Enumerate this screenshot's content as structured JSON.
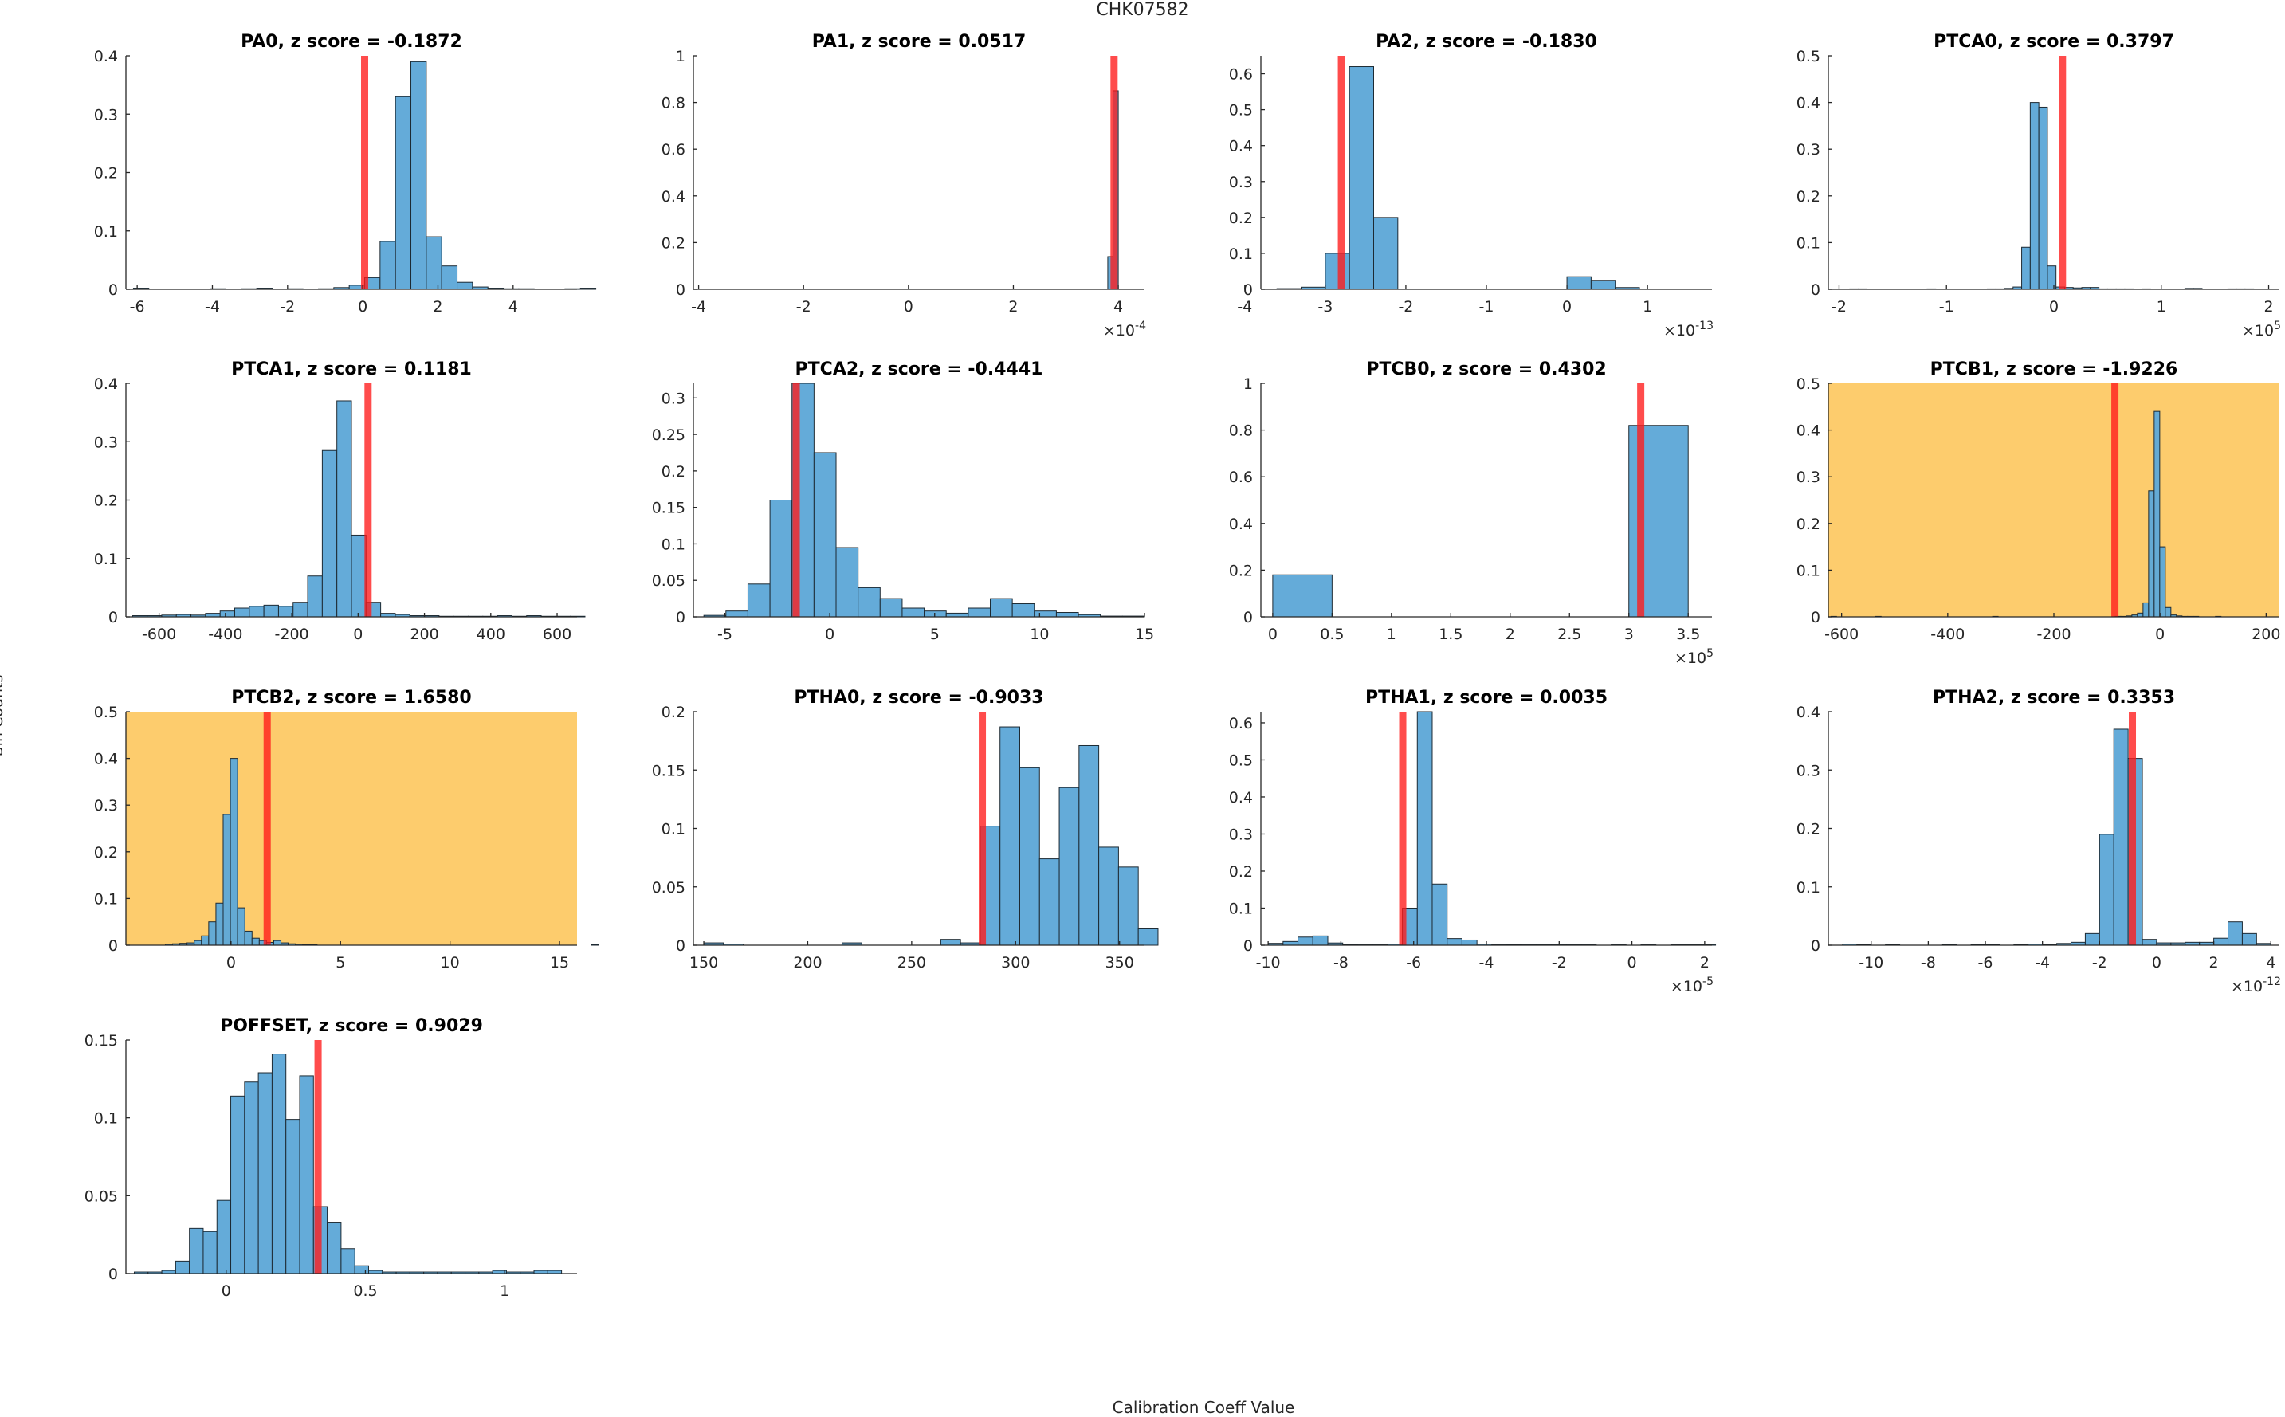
{
  "figure": {
    "title": "CHK07582",
    "xlabel": "Calibration Coeff Value",
    "ylabel": "Bin Counts",
    "highlight_color": "#fdcc6d",
    "bar_color": "#5fa8d8",
    "line_color": "#ff1a1a"
  },
  "chart_data": [
    {
      "type": "bar",
      "title": "PA0, z score = -0.1872",
      "highlight": false,
      "xlim": [
        -6.3,
        5.7
      ],
      "ylim": [
        0,
        0.4
      ],
      "xticks": [
        -6,
        -4,
        -2,
        0,
        2,
        4
      ],
      "xticklabels": [
        "-6",
        "-4",
        "-2",
        "0",
        "2",
        "4"
      ],
      "yticks": [
        0,
        0.1,
        0.2,
        0.3,
        0.4
      ],
      "yticklabels": [
        "0",
        "0.1",
        "0.2",
        "0.3",
        "0.4"
      ],
      "exponent": "",
      "bin_start": -6.1,
      "bin_width": 0.41,
      "values": [
        0.002,
        0,
        0,
        0,
        0,
        0.001,
        0,
        0.001,
        0.002,
        0,
        0.001,
        0,
        0.001,
        0.003,
        0.007,
        0.02,
        0.082,
        0.33,
        0.39,
        0.09,
        0.04,
        0.012,
        0.004,
        0.002,
        0.001,
        0.001,
        0,
        0,
        0.001,
        0.002,
        0,
        0
      ],
      "marker": 0.05
    },
    {
      "type": "bar",
      "title": "PA1, z score = 0.0517",
      "highlight": false,
      "xlim": [
        -4.1,
        4.5
      ],
      "ylim": [
        0,
        1
      ],
      "xticks": [
        -4,
        -2,
        0,
        2,
        4
      ],
      "xticklabels": [
        "-4",
        "-2",
        "0",
        "2",
        "4"
      ],
      "yticks": [
        0,
        0.2,
        0.4,
        0.6,
        0.8,
        1
      ],
      "yticklabels": [
        "0",
        "0.2",
        "0.4",
        "0.6",
        "0.8",
        "1"
      ],
      "exponent": "-4",
      "bin_start": -4.0,
      "bin_width": 0.1,
      "values": [
        0.001,
        0,
        0,
        0,
        0,
        0,
        0,
        0,
        0,
        0,
        0,
        0,
        0,
        0,
        0,
        0,
        0,
        0,
        0,
        0,
        0,
        0,
        0,
        0,
        0,
        0,
        0,
        0,
        0,
        0,
        0,
        0,
        0,
        0,
        0,
        0,
        0,
        0,
        0,
        0,
        0,
        0,
        0,
        0,
        0,
        0,
        0,
        0,
        0,
        0,
        0,
        0,
        0,
        0,
        0,
        0,
        0,
        0,
        0,
        0,
        0,
        0,
        0,
        0,
        0,
        0,
        0,
        0,
        0,
        0,
        0,
        0,
        0,
        0,
        0,
        0,
        0,
        0,
        0.14,
        0.85
      ],
      "marker": 3.92
    },
    {
      "type": "bar",
      "title": "PA2, z score = -0.1830",
      "highlight": false,
      "xlim": [
        -3.8,
        1.8
      ],
      "ylim": [
        0,
        0.65
      ],
      "xticks": [
        -4,
        -3,
        -2,
        -1,
        0,
        1
      ],
      "xticklabels": [
        "-4",
        "-3",
        "-2",
        "-1",
        "0",
        "1"
      ],
      "yticks": [
        0,
        0.1,
        0.2,
        0.3,
        0.4,
        0.5,
        0.6
      ],
      "yticklabels": [
        "0",
        "0.1",
        "0.2",
        "0.3",
        "0.4",
        "0.5",
        "0.6"
      ],
      "exponent": "-13",
      "bin_start": -3.6,
      "bin_width": 0.3,
      "values": [
        0.002,
        0.006,
        0.1,
        0.62,
        0.2,
        0,
        0,
        0,
        0,
        0,
        0,
        0,
        0.035,
        0.025,
        0.005
      ],
      "marker": -2.8
    },
    {
      "type": "bar",
      "title": "PTCA0, z score = 0.3797",
      "highlight": false,
      "xlim": [
        -2.1,
        2.1
      ],
      "ylim": [
        0,
        0.5
      ],
      "xticks": [
        -2,
        -1,
        0,
        1,
        2
      ],
      "xticklabels": [
        "-2",
        "-1",
        "0",
        "1",
        "2"
      ],
      "yticks": [
        0,
        0.1,
        0.2,
        0.3,
        0.4,
        0.5
      ],
      "yticklabels": [
        "0",
        "0.1",
        "0.2",
        "0.3",
        "0.4",
        "0.5"
      ],
      "exponent": "5",
      "bin_start": -1.9,
      "bin_width": 0.08,
      "values": [
        0.001,
        0.001,
        0,
        0,
        0,
        0,
        0,
        0,
        0,
        0.001,
        0,
        0,
        0,
        0,
        0,
        0,
        0.001,
        0.001,
        0.002,
        0.005,
        0.09,
        0.4,
        0.39,
        0.05,
        0.005,
        0.004,
        0.003,
        0.004,
        0.004,
        0.001,
        0.001,
        0.001,
        0.001,
        0,
        0.001,
        0,
        0,
        0,
        0,
        0.002,
        0.002,
        0,
        0,
        0,
        0.001,
        0.001,
        0.001
      ],
      "marker": 0.08
    },
    {
      "type": "bar",
      "title": "PTCA1, z score = 0.1181",
      "highlight": false,
      "xlim": [
        -700,
        660
      ],
      "ylim": [
        0,
        0.4
      ],
      "xticks": [
        -600,
        -400,
        -200,
        0,
        200,
        400,
        600
      ],
      "xticklabels": [
        "-600",
        "-400",
        "-200",
        "0",
        "200",
        "400",
        "600"
      ],
      "yticks": [
        0,
        0.1,
        0.2,
        0.3,
        0.4
      ],
      "yticklabels": [
        "0",
        "0.1",
        "0.2",
        "0.3",
        "0.4"
      ],
      "exponent": "",
      "bin_start": -680,
      "bin_width": 44,
      "values": [
        0.002,
        0.002,
        0.003,
        0.004,
        0.003,
        0.006,
        0.01,
        0.015,
        0.018,
        0.02,
        0.018,
        0.025,
        0.07,
        0.285,
        0.37,
        0.14,
        0.025,
        0.006,
        0.004,
        0.002,
        0.002,
        0.001,
        0.001,
        0.001,
        0.001,
        0.002,
        0.001,
        0.002,
        0.001,
        0.001,
        0.001
      ],
      "marker": 30
    },
    {
      "type": "bar",
      "title": "PTCA2, z score = -0.4441",
      "highlight": false,
      "xlim": [
        -6.5,
        15
      ],
      "ylim": [
        0,
        0.32
      ],
      "xticks": [
        -5,
        0,
        5,
        10,
        15
      ],
      "xticklabels": [
        "-5",
        "0",
        "5",
        "10",
        "15"
      ],
      "yticks": [
        0,
        0.05,
        0.1,
        0.15,
        0.2,
        0.25,
        0.3
      ],
      "yticklabels": [
        "0",
        "0.05",
        "0.1",
        "0.15",
        "0.2",
        "0.25",
        "0.3"
      ],
      "exponent": "",
      "bin_start": -6,
      "bin_width": 1.05,
      "values": [
        0.002,
        0.008,
        0.045,
        0.16,
        0.32,
        0.225,
        0.095,
        0.04,
        0.025,
        0.012,
        0.008,
        0.005,
        0.012,
        0.025,
        0.018,
        0.008,
        0.006,
        0.003,
        0.001,
        0.001
      ],
      "marker": -1.6
    },
    {
      "type": "bar",
      "title": "PTCB0, z score = 0.4302",
      "highlight": false,
      "xlim": [
        -0.1,
        3.7
      ],
      "ylim": [
        0,
        1
      ],
      "xticks": [
        0,
        0.5,
        1,
        1.5,
        2,
        2.5,
        3,
        3.5
      ],
      "xticklabels": [
        "0",
        "0.5",
        "1",
        "1.5",
        "2",
        "2.5",
        "3",
        "3.5"
      ],
      "yticks": [
        0,
        0.2,
        0.4,
        0.6,
        0.8,
        1
      ],
      "yticklabels": [
        "0",
        "0.2",
        "0.4",
        "0.6",
        "0.8",
        "1"
      ],
      "exponent": "5",
      "bin_start": 0,
      "bin_width": 0.5,
      "values": [
        0.18,
        0,
        0,
        0,
        0,
        0,
        0.82
      ],
      "marker": 3.1
    },
    {
      "type": "bar",
      "title": "PTCB1, z score = -1.9226",
      "highlight": true,
      "xlim": [
        -625,
        225
      ],
      "ylim": [
        0,
        0.5
      ],
      "xticks": [
        -600,
        -400,
        -200,
        0,
        200
      ],
      "xticklabels": [
        "-600",
        "-400",
        "-200",
        "0",
        "200"
      ],
      "yticks": [
        0,
        0.1,
        0.2,
        0.3,
        0.4,
        0.5
      ],
      "yticklabels": [
        "0",
        "0.1",
        "0.2",
        "0.3",
        "0.4",
        "0.5"
      ],
      "exponent": "",
      "bin_start": -620,
      "bin_width": 10.5,
      "values": [
        0.001,
        0,
        0,
        0,
        0,
        0,
        0,
        0,
        0.001,
        0,
        0,
        0,
        0,
        0,
        0,
        0,
        0,
        0,
        0,
        0,
        0,
        0,
        0,
        0,
        0,
        0,
        0,
        0,
        0,
        0.001,
        0,
        0,
        0,
        0,
        0,
        0,
        0,
        0,
        0,
        0,
        0,
        0,
        0,
        0,
        0,
        0,
        0,
        0,
        0,
        0,
        0,
        0.001,
        0.001,
        0.002,
        0.004,
        0.008,
        0.03,
        0.27,
        0.44,
        0.15,
        0.02,
        0.004,
        0.002,
        0.001,
        0.001,
        0.001,
        0,
        0,
        0,
        0.001
      ],
      "marker": -85
    },
    {
      "type": "bar",
      "title": "PTCB2, z score = 1.6580",
      "highlight": true,
      "xlim": [
        -4.8,
        15.8
      ],
      "ylim": [
        0,
        0.5
      ],
      "xticks": [
        0,
        5,
        10,
        15
      ],
      "xticklabels": [
        "0",
        "5",
        "10",
        "15"
      ],
      "yticks": [
        0,
        0.1,
        0.2,
        0.3,
        0.4,
        0.5
      ],
      "yticklabels": [
        "0",
        "0.1",
        "0.2",
        "0.3",
        "0.4",
        "0.5"
      ],
      "exponent": "",
      "bin_start": -3.0,
      "bin_width": 0.33,
      "values": [
        0.002,
        0.003,
        0.004,
        0.005,
        0.01,
        0.02,
        0.05,
        0.09,
        0.28,
        0.4,
        0.08,
        0.03,
        0.015,
        0.01,
        0.006,
        0.01,
        0.005,
        0.003,
        0.002,
        0.001,
        0.001,
        0,
        0,
        0,
        0,
        0,
        0,
        0,
        0,
        0,
        0,
        0,
        0,
        0,
        0,
        0,
        0,
        0,
        0,
        0,
        0,
        0,
        0,
        0,
        0,
        0,
        0,
        0,
        0,
        0,
        0,
        0,
        0,
        0,
        0,
        0,
        0,
        0,
        0,
        0.001
      ],
      "marker": 1.65
    },
    {
      "type": "bar",
      "title": "PTHA0, z score = -0.9033",
      "highlight": false,
      "xlim": [
        145,
        362
      ],
      "ylim": [
        0,
        0.2
      ],
      "xticks": [
        150,
        200,
        250,
        300,
        350
      ],
      "xticklabels": [
        "150",
        "200",
        "250",
        "300",
        "350"
      ],
      "yticks": [
        0,
        0.05,
        0.1,
        0.15,
        0.2
      ],
      "yticklabels": [
        "0",
        "0.05",
        "0.1",
        "0.15",
        "0.2"
      ],
      "exponent": "",
      "bin_start": 150,
      "bin_width": 9.5,
      "values": [
        0.002,
        0.001,
        0,
        0,
        0,
        0,
        0,
        0.002,
        0,
        0,
        0,
        0,
        0.005,
        0.002,
        0.102,
        0.187,
        0.152,
        0.074,
        0.135,
        0.171,
        0.084,
        0.067,
        0.014
      ],
      "marker": 284
    },
    {
      "type": "bar",
      "title": "PTHA1, z score = 0.0035",
      "highlight": false,
      "xlim": [
        -10.2,
        2.2
      ],
      "ylim": [
        0,
        0.63
      ],
      "xticks": [
        -10,
        -8,
        -6,
        -4,
        -2,
        0,
        2
      ],
      "xticklabels": [
        "-10",
        "-8",
        "-6",
        "-4",
        "-2",
        "0",
        "2"
      ],
      "yticks": [
        0,
        0.1,
        0.2,
        0.3,
        0.4,
        0.5,
        0.6
      ],
      "yticklabels": [
        "0",
        "0.1",
        "0.2",
        "0.3",
        "0.4",
        "0.5",
        "0.6"
      ],
      "exponent": "-5",
      "bin_start": -10,
      "bin_width": 0.41,
      "values": [
        0.005,
        0.01,
        0.022,
        0.025,
        0.006,
        0.002,
        0.001,
        0.001,
        0.003,
        0.1,
        0.63,
        0.165,
        0.018,
        0.014,
        0.003,
        0.001,
        0.002,
        0.001,
        0.001,
        0.001,
        0.001,
        0.001,
        0,
        0.001,
        0,
        0.001,
        0,
        0.001,
        0.001,
        0.001
      ],
      "marker": -6.3
    },
    {
      "type": "bar",
      "title": "PTHA2, z score = 0.3353",
      "highlight": false,
      "xlim": [
        -11.5,
        4.3
      ],
      "ylim": [
        0,
        0.4
      ],
      "xticks": [
        -10,
        -8,
        -6,
        -4,
        -2,
        0,
        2,
        4
      ],
      "xticklabels": [
        "-10",
        "-8",
        "-6",
        "-4",
        "-2",
        "0",
        "2",
        "4"
      ],
      "yticks": [
        0,
        0.1,
        0.2,
        0.3,
        0.4
      ],
      "yticklabels": [
        "0",
        "0.1",
        "0.2",
        "0.3",
        "0.4"
      ],
      "exponent": "-12",
      "bin_start": -11,
      "bin_width": 0.5,
      "values": [
        0.002,
        0.001,
        0,
        0.001,
        0,
        0,
        0,
        0.001,
        0,
        0.001,
        0.001,
        0,
        0.001,
        0.002,
        0.001,
        0.003,
        0.005,
        0.02,
        0.19,
        0.37,
        0.32,
        0.01,
        0.004,
        0.004,
        0.005,
        0.005,
        0.012,
        0.04,
        0.02,
        0.003
      ],
      "marker": -0.85
    },
    {
      "type": "bar",
      "title": "POFFSET, z score = 0.9029",
      "highlight": false,
      "xlim": [
        -0.36,
        1.26
      ],
      "ylim": [
        0,
        0.15
      ],
      "xticks": [
        0,
        0.5,
        1
      ],
      "xticklabels": [
        "0",
        "0.5",
        "1"
      ],
      "yticks": [
        0,
        0.05,
        0.1,
        0.15
      ],
      "yticklabels": [
        "0",
        "0.05",
        "0.1",
        "0.15"
      ],
      "exponent": "",
      "bin_start": -0.33,
      "bin_width": 0.0495,
      "values": [
        0.001,
        0.001,
        0.002,
        0.008,
        0.029,
        0.027,
        0.047,
        0.114,
        0.123,
        0.129,
        0.141,
        0.099,
        0.127,
        0.043,
        0.033,
        0.016,
        0.005,
        0.002,
        0.001,
        0.001,
        0.001,
        0.001,
        0.001,
        0.001,
        0.001,
        0.001,
        0.002,
        0.001,
        0.001,
        0.002,
        0.002
      ],
      "marker": 0.33
    }
  ]
}
